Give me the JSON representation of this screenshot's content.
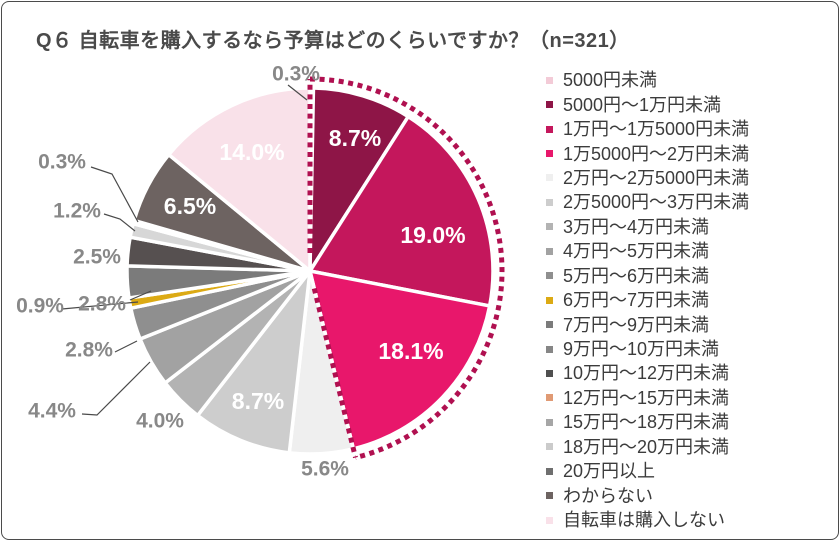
{
  "title": "Q６ 自転車を購入するなら予算はどのくらいですか？（n=321）",
  "chart_data": {
    "type": "pie",
    "title": "Q６ 自転車を購入するなら予算はどのくらいですか？",
    "n_label": "n=321",
    "n": 321,
    "direction": "clockwise",
    "start_angle_deg": 0,
    "legend_position": "right",
    "grid": false,
    "categories": [
      "5000円未満",
      "5000円～1万円未満",
      "1万円～1万5000円未満",
      "1万5000円～2万円未満",
      "2万円～2万5000円未満",
      "2万5000円～3万円未満",
      "3万円～4万円未満",
      "4万円～5万円未満",
      "5万円～6万円未満",
      "6万円～7万円未満",
      "7万円～9万円未満",
      "9万円～10万円未満",
      "10万円～12万円未満",
      "12万円～15万円未満",
      "15万円～18万円未満",
      "18万円～20万円未満",
      "20万円以上",
      "わからない",
      "自転車は購入しない"
    ],
    "values": [
      0.3,
      8.7,
      19.0,
      18.1,
      5.6,
      8.7,
      4.0,
      4.4,
      2.8,
      0.9,
      2.8,
      2.5,
      1.2,
      0.3,
      0.0,
      0.0,
      0.0,
      6.5,
      14.0
    ],
    "colors": [
      "#f3cbd7",
      "#8e1547",
      "#c4175c",
      "#e8176b",
      "#efefef",
      "#cdcdcd",
      "#b3b3b3",
      "#a2a2a2",
      "#8f8f8f",
      "#dcaa14",
      "#7b7b7b",
      "#565050",
      "#d7d7d7",
      "#e09a74",
      "#a6a6a6",
      "#cbcbcb",
      "#6f6f6f",
      "#6d6361",
      "#f9e1e9"
    ],
    "legend_marker_colors": [
      "#f3cbd7",
      "#8e1547",
      "#c4175c",
      "#e8176b",
      "#efefef",
      "#cdcdcd",
      "#b3b3b3",
      "#a2a2a2",
      "#8f8f8f",
      "#dcaa14",
      "#7b7b7b",
      "#868686",
      "#4f4f4f",
      "#e09a74",
      "#a6a6a6",
      "#cbcbcb",
      "#6f6f6f",
      "#6d6361",
      "#f9e1e9"
    ],
    "highlight": {
      "style": "dotted-outline",
      "color": "#b01050",
      "from_category": "5000円未満",
      "to_category": "1万5000円～2万円未満"
    }
  }
}
